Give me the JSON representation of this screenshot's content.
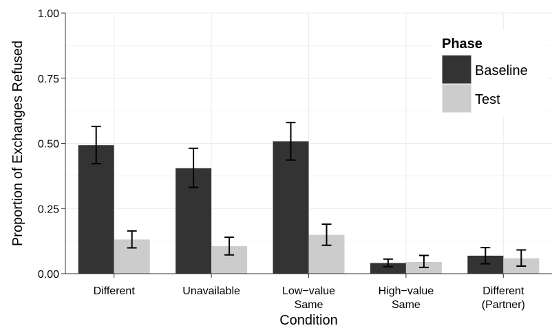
{
  "chart_data": {
    "type": "bar",
    "title": "",
    "xlabel": "Condition",
    "ylabel": "Proportion of Exchanges Refused",
    "ylim": [
      0,
      1
    ],
    "yticks": [
      "0.00",
      "0.25",
      "0.50",
      "0.75",
      "1.00"
    ],
    "ytick_values": [
      0,
      0.25,
      0.5,
      0.75,
      1
    ],
    "categories": [
      [
        "Different"
      ],
      [
        "Unavailable"
      ],
      [
        "Low−value",
        "Same"
      ],
      [
        "High−value",
        "Same"
      ],
      [
        "Different",
        "(Partner)"
      ]
    ],
    "series": [
      {
        "name": "Baseline",
        "color": "#333333",
        "values": [
          0.493,
          0.405,
          0.508,
          0.041,
          0.069
        ],
        "err_low": [
          0.422,
          0.331,
          0.436,
          0.027,
          0.038
        ],
        "err_high": [
          0.565,
          0.481,
          0.58,
          0.056,
          0.1
        ]
      },
      {
        "name": "Test",
        "color": "#cccccc",
        "values": [
          0.131,
          0.106,
          0.149,
          0.045,
          0.059
        ],
        "err_low": [
          0.099,
          0.072,
          0.109,
          0.024,
          0.029
        ],
        "err_high": [
          0.164,
          0.14,
          0.19,
          0.07,
          0.091
        ]
      }
    ],
    "legend": {
      "title": "Phase",
      "position": "top-right"
    },
    "grid": true
  }
}
